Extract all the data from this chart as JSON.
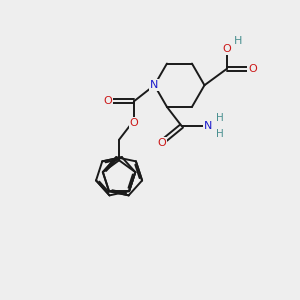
{
  "bg_color": "#eeeeee",
  "bond_color": "#1a1a1a",
  "atom_colors": {
    "N": "#1a1acc",
    "O": "#cc1a1a",
    "H": "#4a9090",
    "C": "#1a1a1a"
  },
  "figsize": [
    3.0,
    3.0
  ],
  "dpi": 100
}
